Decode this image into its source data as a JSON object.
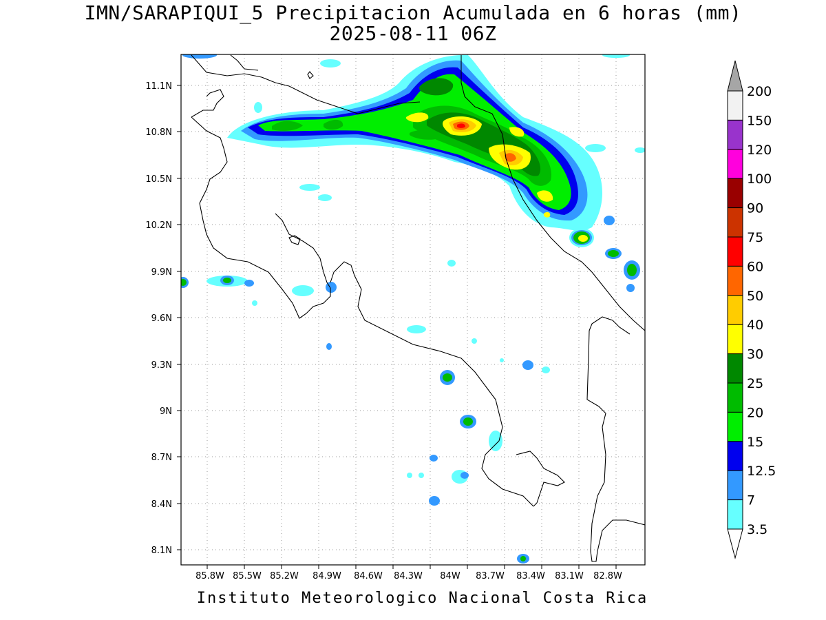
{
  "title_line1": "IMN/SARAPIQUI_5 Precipitacion Acumulada en 6 horas (mm)",
  "title_line2": "2025-08-11 06Z",
  "footer": "Instituto Meteorologico Nacional Costa Rica",
  "lat_ticks": [
    "11.1N",
    "10.8N",
    "10.5N",
    "10.2N",
    "9.9N",
    "9.6N",
    "9.3N",
    "9N",
    "8.7N",
    "8.4N",
    "8.1N"
  ],
  "lon_ticks": [
    "85.8W",
    "85.5W",
    "85.2W",
    "84.9W",
    "84.6W",
    "84.3W",
    "84W",
    "83.7W",
    "83.4W",
    "83.1W",
    "82.8W"
  ],
  "colorbar": {
    "labels": [
      "200",
      "150",
      "120",
      "100",
      "90",
      "75",
      "60",
      "50",
      "40",
      "30",
      "25",
      "20",
      "15",
      "12.5",
      "7",
      "3.5"
    ],
    "colors": [
      "#f2f2f2",
      "#9933cc",
      "#ff00dd",
      "#990000",
      "#cc3300",
      "#ff0000",
      "#ff6600",
      "#ffcc00",
      "#ffff00",
      "#008800",
      "#00bb00",
      "#00ee00",
      "#0000ee",
      "#3399ff",
      "#66ffff"
    ],
    "top_arrow_color": "#a6a6a6",
    "bottom_arrow_color": "#ffffff"
  },
  "colors": {
    "c3": "#66ffff",
    "c7": "#3399ff",
    "c12": "#0000ee",
    "c15": "#00ee00",
    "c20": "#00bb00",
    "c25": "#008800",
    "c30": "#ffff00",
    "c40": "#ffcc00",
    "c50": "#ff6600",
    "c60": "#ff0000"
  }
}
